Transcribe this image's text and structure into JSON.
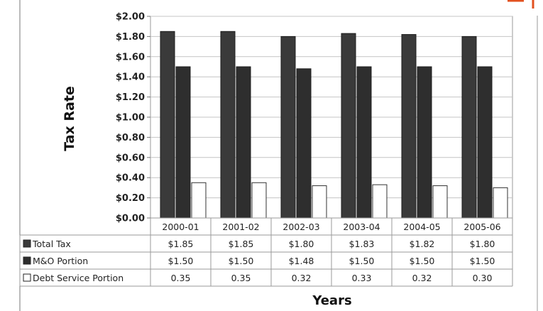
{
  "chart_data": {
    "type": "bar",
    "xlabel": "Years",
    "ylabel": "Tax Rate",
    "ylim": [
      0,
      2
    ],
    "y_ticks": [
      "$0.00",
      "$0.20",
      "$0.40",
      "$0.60",
      "$0.80",
      "$1.00",
      "$1.20",
      "$1.40",
      "$1.60",
      "$1.80",
      "$2.00"
    ],
    "categories": [
      "2000-01",
      "2001-02",
      "2002-03",
      "2003-04",
      "2004-05",
      "2005-06"
    ],
    "grid": "horizontal",
    "series": [
      {
        "name": "Total Tax",
        "values": [
          1.85,
          1.85,
          1.8,
          1.83,
          1.82,
          1.8
        ],
        "labels": [
          "$1.85",
          "$1.85",
          "$1.80",
          "$1.83",
          "$1.82",
          "$1.80"
        ],
        "color": "#3a3a3a"
      },
      {
        "name": "M&O Portion",
        "values": [
          1.5,
          1.5,
          1.48,
          1.5,
          1.5,
          1.5
        ],
        "labels": [
          "$1.50",
          "$1.50",
          "$1.48",
          "$1.50",
          "$1.50",
          "$1.50"
        ],
        "color": "#2e2e2e"
      },
      {
        "name": "Debt Service Portion",
        "values": [
          0.35,
          0.35,
          0.32,
          0.33,
          0.32,
          0.3
        ],
        "labels": [
          "0.35",
          "0.35",
          "0.32",
          "0.33",
          "0.32",
          "0.30"
        ],
        "color": "#ffffff"
      }
    ],
    "legend": "data-table"
  }
}
